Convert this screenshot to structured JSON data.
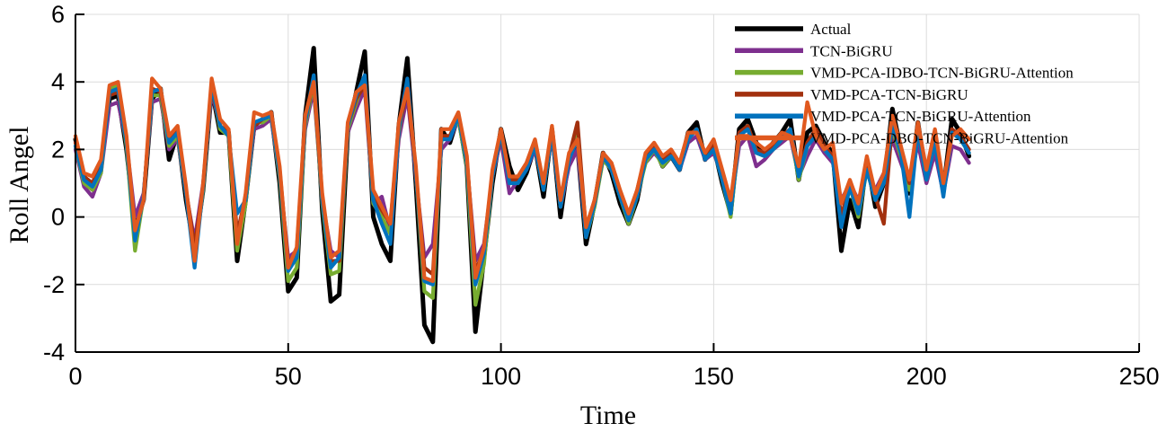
{
  "chart_data": {
    "type": "line",
    "title": "",
    "xlabel": "Time",
    "ylabel": "Roll Angel",
    "xlim": [
      0,
      250
    ],
    "ylim": [
      -4,
      6
    ],
    "xticks": [
      0,
      50,
      100,
      150,
      200,
      250
    ],
    "yticks": [
      -4,
      -2,
      0,
      2,
      4,
      6
    ],
    "grid": true,
    "legend_position": "top-right",
    "x": [
      0,
      2,
      4,
      6,
      8,
      10,
      12,
      14,
      16,
      18,
      20,
      22,
      24,
      26,
      28,
      30,
      32,
      34,
      36,
      38,
      40,
      42,
      44,
      46,
      48,
      50,
      52,
      54,
      56,
      58,
      60,
      62,
      64,
      66,
      68,
      70,
      72,
      74,
      76,
      78,
      80,
      82,
      84,
      86,
      88,
      90,
      92,
      94,
      96,
      98,
      100,
      102,
      104,
      106,
      108,
      110,
      112,
      114,
      116,
      118,
      120,
      122,
      124,
      126,
      128,
      130,
      132,
      134,
      136,
      138,
      140,
      142,
      144,
      146,
      148,
      150,
      152,
      154,
      156,
      158,
      160,
      162,
      164,
      166,
      168,
      170,
      172,
      174,
      176,
      178,
      180,
      182,
      184,
      186,
      188,
      190,
      192,
      194,
      196,
      198,
      200,
      202,
      204,
      206,
      208,
      210
    ],
    "series": [
      {
        "name": "Actual",
        "color": "#000000",
        "values": [
          2.3,
          1.2,
          0.9,
          1.5,
          3.5,
          3.6,
          2.0,
          -0.3,
          0.5,
          3.5,
          3.8,
          1.7,
          2.5,
          0.5,
          -1.0,
          0.8,
          3.8,
          2.5,
          2.5,
          -1.3,
          0.5,
          2.7,
          2.9,
          3.1,
          1.0,
          -2.2,
          -1.8,
          3.0,
          5.0,
          0.2,
          -2.5,
          -2.3,
          2.5,
          3.7,
          4.9,
          0.0,
          -0.8,
          -1.3,
          2.7,
          4.7,
          1.0,
          -3.2,
          -3.7,
          2.6,
          2.2,
          3.0,
          1.5,
          -3.4,
          -1.2,
          1.0,
          2.6,
          1.5,
          0.8,
          1.3,
          2.1,
          0.6,
          2.6,
          0.0,
          1.8,
          2.1,
          -0.8,
          0.4,
          1.9,
          1.3,
          0.4,
          -0.2,
          0.5,
          1.8,
          2.1,
          1.5,
          1.8,
          1.4,
          2.5,
          2.8,
          1.7,
          2.1,
          1.0,
          0.1,
          2.6,
          2.9,
          2.2,
          1.9,
          2.2,
          2.5,
          2.9,
          1.1,
          2.5,
          2.7,
          2.2,
          1.9,
          -1.0,
          0.5,
          -0.3,
          1.7,
          0.3,
          1.0,
          3.2,
          2.0,
          0.7,
          2.8,
          1.2,
          2.5,
          0.8,
          2.9,
          2.5,
          1.8
        ]
      },
      {
        "name": "TCN-BiGRU",
        "color": "#7e2f8e",
        "values": [
          2.0,
          0.9,
          0.6,
          1.3,
          3.3,
          3.4,
          2.2,
          0.0,
          0.7,
          3.4,
          3.5,
          2.0,
          2.3,
          0.7,
          -0.7,
          1.0,
          3.7,
          2.7,
          2.4,
          -0.8,
          0.6,
          2.6,
          2.7,
          2.9,
          1.2,
          -1.2,
          -1.0,
          2.6,
          3.8,
          0.5,
          -1.0,
          -1.2,
          2.5,
          3.2,
          3.8,
          0.4,
          0.6,
          -0.4,
          2.3,
          3.6,
          1.2,
          -1.2,
          -0.8,
          2.0,
          2.3,
          2.9,
          1.6,
          -1.3,
          -0.8,
          1.2,
          2.3,
          0.7,
          1.1,
          1.4,
          2.0,
          0.9,
          2.4,
          0.3,
          1.5,
          2.0,
          -0.5,
          0.5,
          1.7,
          1.4,
          0.7,
          0.1,
          0.7,
          1.6,
          1.9,
          1.6,
          1.8,
          1.4,
          2.2,
          2.4,
          1.7,
          1.9,
          1.2,
          0.3,
          2.1,
          2.4,
          1.5,
          1.7,
          2.0,
          2.2,
          2.4,
          1.2,
          1.8,
          2.3,
          1.9,
          1.6,
          0.5,
          1.0,
          0.5,
          1.3,
          0.8,
          1.3,
          2.3,
          1.6,
          0.9,
          2.2,
          1.0,
          1.9,
          0.7,
          2.1,
          2.0,
          1.6
        ]
      },
      {
        "name": "VMD-PCA-IDBO-TCN-BiGRU-Attention",
        "color": "#77ac30",
        "values": [
          2.1,
          1.0,
          0.8,
          1.3,
          3.8,
          3.9,
          2.1,
          -1.0,
          0.6,
          3.6,
          3.6,
          2.1,
          2.4,
          0.7,
          -1.2,
          0.8,
          3.9,
          2.6,
          2.4,
          -1.0,
          0.4,
          2.8,
          2.8,
          3.0,
          1.2,
          -1.9,
          -1.5,
          2.7,
          4.0,
          0.4,
          -1.7,
          -1.6,
          2.6,
          3.4,
          4.1,
          0.4,
          0.0,
          -0.5,
          2.5,
          4.0,
          1.3,
          -2.2,
          -2.4,
          2.3,
          2.4,
          2.9,
          1.5,
          -2.6,
          -1.4,
          1.2,
          2.5,
          1.2,
          1.0,
          1.5,
          2.1,
          0.8,
          2.5,
          0.3,
          1.7,
          2.5,
          -0.6,
          0.3,
          1.7,
          1.4,
          0.6,
          -0.2,
          0.6,
          1.6,
          2.0,
          1.5,
          1.8,
          1.5,
          2.3,
          2.6,
          1.8,
          2.0,
          1.1,
          0.0,
          2.4,
          2.7,
          1.9,
          1.8,
          2.0,
          2.3,
          2.6,
          1.1,
          2.1,
          2.5,
          2.0,
          1.7,
          -0.2,
          0.9,
          0.0,
          1.4,
          0.5,
          1.1,
          2.6,
          1.8,
          0.8,
          2.6,
          1.1,
          2.2,
          0.7,
          2.5,
          2.3,
          1.9
        ]
      },
      {
        "name": "VMD-PCA-TCN-BiGRU",
        "color": "#a2300e",
        "values": [
          2.2,
          1.2,
          1.0,
          1.6,
          3.6,
          3.7,
          2.3,
          -0.5,
          0.5,
          3.8,
          3.7,
          2.3,
          2.6,
          0.8,
          -0.9,
          0.9,
          3.8,
          2.7,
          2.5,
          -0.5,
          0.6,
          2.7,
          2.9,
          3.0,
          1.4,
          -1.4,
          -1.0,
          2.8,
          4.1,
          0.5,
          -1.3,
          -1.3,
          2.7,
          3.5,
          3.9,
          0.6,
          0.2,
          -0.2,
          2.6,
          3.8,
          1.3,
          -1.5,
          -1.7,
          2.4,
          2.4,
          3.0,
          1.7,
          -1.6,
          -1.0,
          1.3,
          2.4,
          1.1,
          1.1,
          1.5,
          2.2,
          0.9,
          2.6,
          0.4,
          1.8,
          2.8,
          -0.4,
          0.4,
          1.8,
          1.5,
          0.7,
          0.0,
          0.8,
          1.8,
          2.1,
          1.7,
          1.9,
          1.5,
          2.4,
          2.6,
          1.8,
          2.1,
          1.2,
          0.3,
          2.5,
          2.7,
          2.0,
          1.9,
          2.1,
          2.4,
          2.6,
          1.3,
          2.2,
          2.6,
          2.1,
          1.8,
          0.0,
          1.0,
          0.3,
          1.5,
          0.6,
          -0.2,
          2.8,
          2.0,
          1.0,
          2.7,
          1.2,
          2.3,
          0.9,
          2.6,
          2.4,
          2.0
        ]
      },
      {
        "name": "VMD-PCA-TCN-BiGRU-Attention",
        "color": "#0072bd",
        "values": [
          2.1,
          1.1,
          0.9,
          1.4,
          3.7,
          3.8,
          2.2,
          -0.7,
          0.6,
          3.7,
          3.8,
          2.2,
          2.5,
          0.7,
          -1.5,
          0.9,
          3.9,
          2.7,
          2.4,
          0.1,
          0.5,
          2.8,
          2.9,
          3.0,
          1.3,
          -1.6,
          -1.2,
          2.8,
          4.2,
          0.5,
          -1.5,
          -1.2,
          2.7,
          3.6,
          4.2,
          0.5,
          -0.2,
          -0.8,
          2.6,
          4.1,
          1.3,
          -1.9,
          -2.0,
          2.3,
          2.3,
          3.0,
          1.6,
          -2.0,
          -1.1,
          1.2,
          2.5,
          1.0,
          1.0,
          1.4,
          2.1,
          0.8,
          2.5,
          0.3,
          1.7,
          2.3,
          -0.6,
          0.4,
          1.8,
          1.4,
          0.6,
          -0.1,
          0.6,
          1.7,
          2.0,
          1.6,
          1.8,
          1.4,
          2.3,
          2.6,
          1.7,
          2.0,
          1.1,
          0.1,
          2.4,
          2.6,
          1.9,
          1.8,
          2.0,
          2.3,
          2.6,
          1.2,
          2.1,
          2.4,
          2.0,
          1.7,
          -0.3,
          0.9,
          0.1,
          1.4,
          0.5,
          1.0,
          2.7,
          1.9,
          0.0,
          2.6,
          1.1,
          2.2,
          0.6,
          2.5,
          2.3,
          1.9
        ]
      },
      {
        "name": "VMD-PCA-DBO-TCN-BiGRU-Attention",
        "color": "#e0591f",
        "values": [
          2.4,
          1.3,
          1.2,
          1.7,
          3.9,
          4.0,
          2.4,
          -0.4,
          0.5,
          4.1,
          3.8,
          2.4,
          2.7,
          0.9,
          -1.3,
          1.0,
          4.1,
          2.9,
          2.6,
          -0.8,
          0.7,
          3.1,
          3.0,
          3.1,
          1.5,
          -1.5,
          -0.9,
          3.0,
          4.0,
          0.7,
          -1.2,
          -1.0,
          2.8,
          3.7,
          3.9,
          0.8,
          0.3,
          -0.2,
          2.8,
          3.8,
          1.5,
          -1.8,
          -1.9,
          2.6,
          2.6,
          3.1,
          1.8,
          -1.8,
          -0.9,
          1.4,
          2.6,
          1.2,
          1.2,
          1.6,
          2.3,
          1.0,
          2.7,
          0.5,
          1.9,
          2.3,
          -0.3,
          0.5,
          1.9,
          1.6,
          0.8,
          0.1,
          0.8,
          1.9,
          2.2,
          1.8,
          2.0,
          1.6,
          2.5,
          2.5,
          1.9,
          2.3,
          1.4,
          0.5,
          2.4,
          2.4,
          2.2,
          2.0,
          2.2,
          2.5,
          2.4,
          1.5,
          3.4,
          2.4,
          2.0,
          2.2,
          0.4,
          1.1,
          0.4,
          1.8,
          0.7,
          1.3,
          3.0,
          2.1,
          1.1,
          2.8,
          1.4,
          2.6,
          1.0,
          2.4,
          2.6,
          2.3
        ]
      }
    ]
  }
}
